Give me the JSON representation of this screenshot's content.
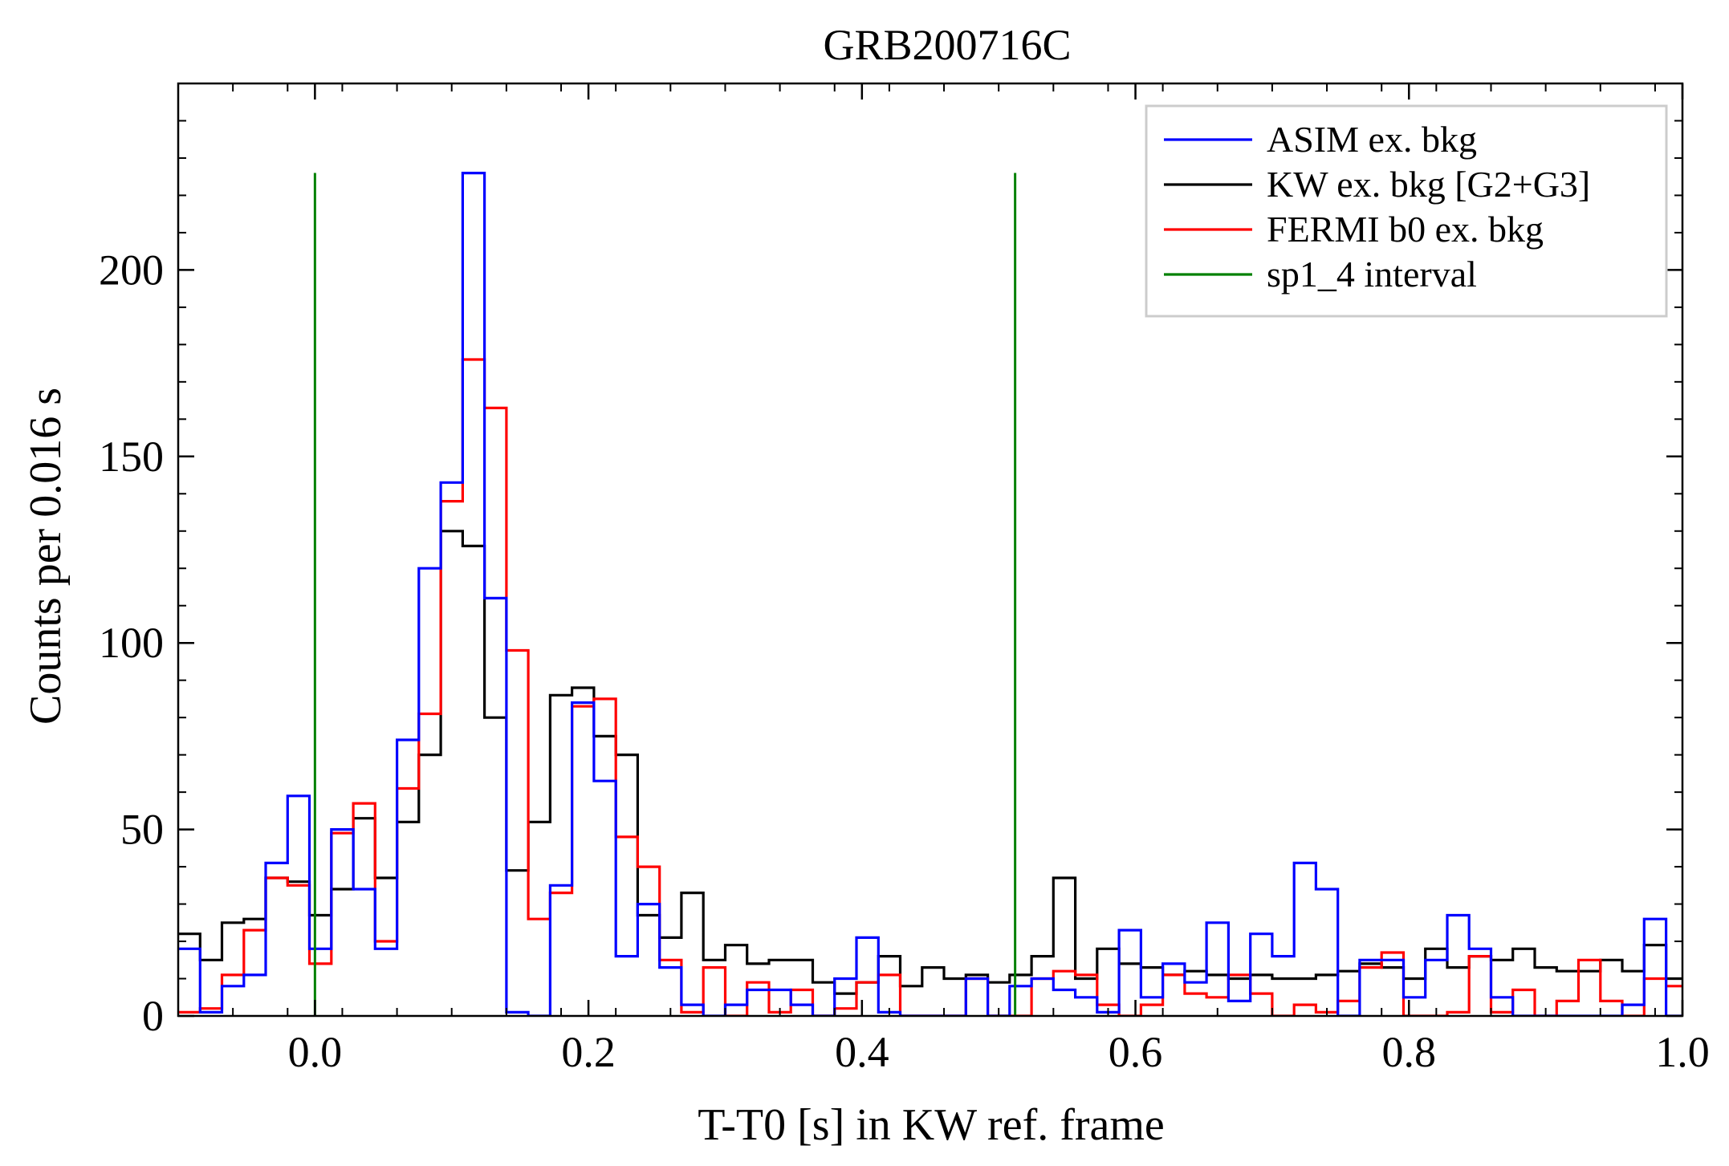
{
  "chart_data": {
    "type": "line",
    "title": "GRB200716C",
    "xlabel": "T-T0 [s] in KW ref. frame",
    "ylabel": "Counts per 0.016 s",
    "xlim": [
      -0.1,
      1.0
    ],
    "ylim": [
      0,
      250
    ],
    "x_ticks": [
      0.0,
      0.2,
      0.4,
      0.6,
      0.8,
      1.0
    ],
    "x_tick_labels": [
      "0.0",
      "0.2",
      "0.4",
      "0.6",
      "0.8",
      "1.0"
    ],
    "y_ticks": [
      0,
      50,
      100,
      150,
      200
    ],
    "y_tick_labels": [
      "0",
      "50",
      "100",
      "150",
      "200"
    ],
    "x_minor_step": 0.04,
    "y_minor_step": 10,
    "grid": false,
    "legend_position": "top-right",
    "bin_start": -0.1,
    "bin_width": 0.016,
    "series": [
      {
        "name": "ASIM ex. bkg",
        "color": "#0000ff",
        "drawstyle": "steps",
        "values": [
          18,
          1,
          8,
          11,
          41,
          59,
          18,
          50,
          34,
          18,
          74,
          120,
          143,
          226,
          112,
          1,
          0,
          35,
          84,
          63,
          16,
          30,
          13,
          3,
          0,
          3,
          7,
          7,
          3,
          0,
          10,
          21,
          1,
          0,
          0,
          0,
          10,
          0,
          8,
          10,
          7,
          5,
          1,
          23,
          5,
          14,
          9,
          25,
          4,
          22,
          16,
          41,
          34,
          0,
          15,
          15,
          5,
          15,
          27,
          18,
          5,
          0,
          0,
          0,
          0,
          0,
          3,
          26,
          0,
          9,
          8
        ]
      },
      {
        "name": "KW ex. bkg [G2+G3]",
        "color": "#000000",
        "drawstyle": "steps",
        "values": [
          22,
          15,
          25,
          26,
          37,
          36,
          27,
          34,
          53,
          37,
          52,
          70,
          130,
          126,
          80,
          39,
          52,
          86,
          88,
          75,
          70,
          27,
          21,
          33,
          15,
          19,
          14,
          15,
          15,
          9,
          6,
          9,
          16,
          8,
          13,
          10,
          11,
          9,
          11,
          16,
          37,
          10,
          18,
          14,
          13,
          11,
          12,
          11,
          10,
          11,
          10,
          10,
          11,
          12,
          14,
          13,
          10,
          18,
          13,
          16,
          15,
          18,
          13,
          12,
          12,
          15,
          12,
          19,
          10,
          17,
          8
        ]
      },
      {
        "name": "FERMI b0 ex. bkg",
        "color": "#ff0000",
        "drawstyle": "steps",
        "values": [
          1,
          2,
          11,
          23,
          37,
          35,
          14,
          49,
          57,
          20,
          61,
          81,
          138,
          176,
          163,
          98,
          26,
          33,
          83,
          85,
          48,
          40,
          15,
          1,
          13,
          0,
          9,
          1,
          7,
          0,
          2,
          9,
          11,
          0,
          0,
          0,
          10,
          0,
          0,
          10,
          12,
          11,
          3,
          0,
          3,
          11,
          6,
          5,
          11,
          6,
          0,
          3,
          1,
          4,
          13,
          17,
          0,
          0,
          1,
          16,
          1,
          7,
          0,
          4,
          15,
          4,
          0,
          10,
          8,
          9,
          1
        ]
      },
      {
        "name": "sp1_4 interval",
        "color": "#008000",
        "drawstyle": "vlines",
        "x": [
          0.0,
          0.512
        ],
        "ymax": 226
      }
    ]
  }
}
